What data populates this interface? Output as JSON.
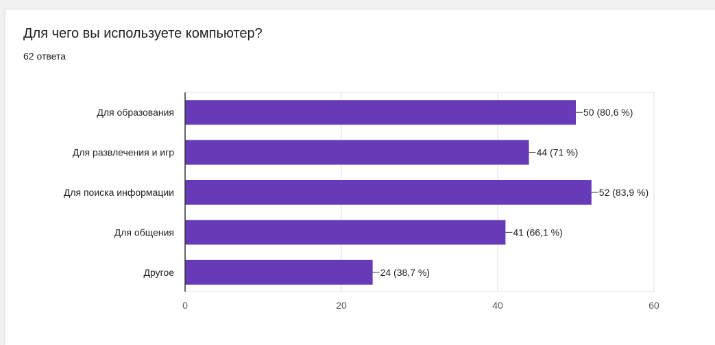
{
  "question": {
    "title": "Для чего вы используете компьютер?",
    "responses": "62 ответа"
  },
  "colors": {
    "bar": "#673ab7",
    "grid": "#e0e0e0",
    "axis": "#333333",
    "text": "#202124",
    "tick_text": "#555555"
  },
  "chart_data": {
    "type": "bar",
    "orientation": "horizontal",
    "categories": [
      "Для образования",
      "Для развлечения и игр",
      "Для поиска информации",
      "Для общения",
      "Другое"
    ],
    "values": [
      50,
      44,
      52,
      41,
      24
    ],
    "labels": [
      "50 (80,6 %)",
      "44 (71 %)",
      "52 (83,9 %)",
      "41 (66,1 %)",
      "24 (38,7 %)"
    ],
    "xticks": [
      0,
      20,
      40,
      60
    ],
    "xtick_labels": [
      "0",
      "20",
      "40",
      "60"
    ],
    "xlim": [
      0,
      60
    ],
    "grid": true,
    "title": "",
    "xlabel": "",
    "ylabel": ""
  }
}
